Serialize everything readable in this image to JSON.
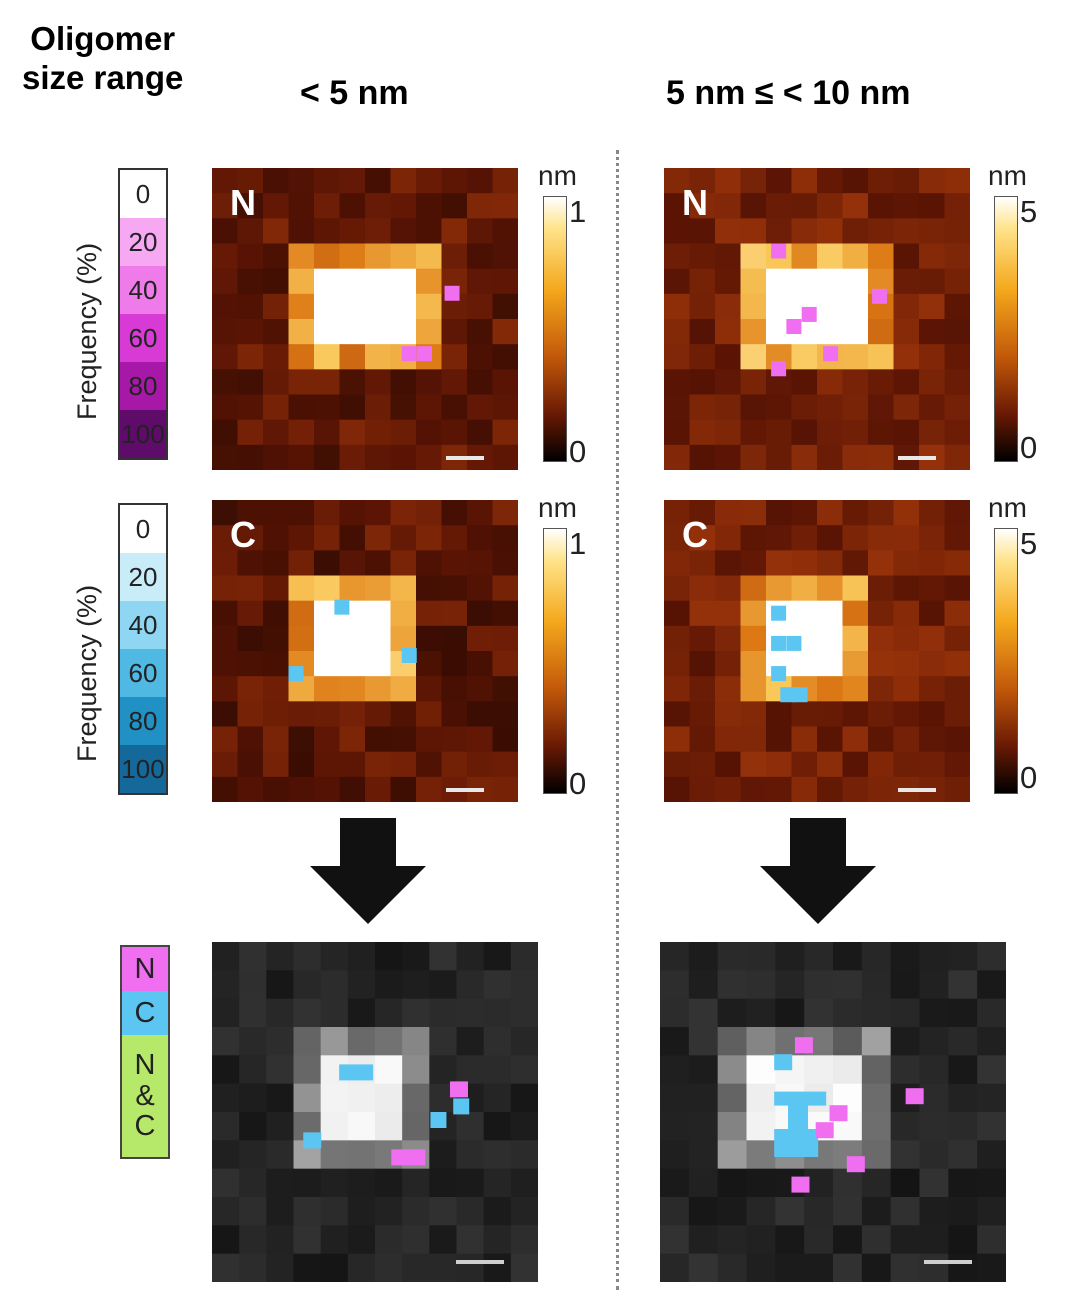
{
  "header": {
    "row_label_line1": "Oligomer",
    "row_label_line2": "size range",
    "col1": "< 5 nm",
    "col2": "5 nm ≤  < 10 nm"
  },
  "freq_bar_N": {
    "axis_label": "Frequency (%)",
    "ticks": [
      "0",
      "20",
      "40",
      "60",
      "80",
      "100"
    ],
    "colors": [
      "#ffffff",
      "#f7a8f3",
      "#ef7ae9",
      "#d83ad6",
      "#a818a8",
      "#5e0b6a"
    ]
  },
  "freq_bar_C": {
    "axis_label": "Frequency (%)",
    "ticks": [
      "0",
      "20",
      "40",
      "60",
      "80",
      "100"
    ],
    "colors": [
      "#ffffff",
      "#c9ecf9",
      "#8fd6f2",
      "#4fb9e4",
      "#2191c5",
      "#15699a"
    ]
  },
  "panels": {
    "n_small": {
      "label": "N"
    },
    "n_large": {
      "label": "N"
    },
    "c_small": {
      "label": "C"
    },
    "c_large": {
      "label": "C"
    }
  },
  "colorbar_small_N": {
    "unit": "nm",
    "max": "1",
    "min": "0"
  },
  "colorbar_large_N": {
    "unit": "nm",
    "max": "5",
    "min": "0"
  },
  "colorbar_small_C": {
    "unit": "nm",
    "max": "1",
    "min": "0"
  },
  "colorbar_large_C": {
    "unit": "nm",
    "max": "5",
    "min": "0"
  },
  "key": {
    "items": [
      {
        "text": "N",
        "color": "#f06ef0"
      },
      {
        "text": "C",
        "color": "#5cc6f2"
      },
      {
        "text": "N\n&\nC",
        "color": "#b6e86a"
      }
    ]
  },
  "colors": {
    "magenta": "#f06ef0",
    "cyan": "#5cc6f2",
    "heat_dark": "#5a1404",
    "heat_mid": "#9a3a08",
    "heat_bright": "#f2a41c"
  }
}
